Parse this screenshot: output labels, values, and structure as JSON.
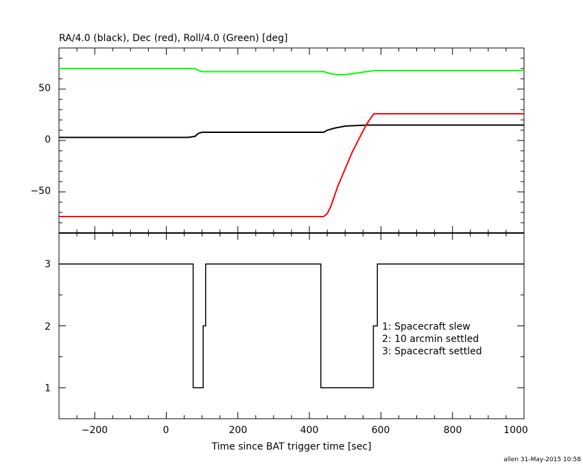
{
  "chart_data": [
    {
      "type": "line",
      "title": "RA/4.0 (black), Dec (red), Roll/4.0 (Green) [deg]",
      "xlim": [
        -300,
        1000
      ],
      "ylim": [
        -90,
        90
      ],
      "y_ticks": [
        50,
        0,
        -50
      ],
      "y_tick_labels": [
        "50",
        "0",
        "−50"
      ],
      "series": [
        {
          "color": "#000000",
          "x": [
            -300,
            60,
            80,
            90,
            100,
            200,
            340,
            440,
            450,
            470,
            500,
            560,
            580,
            1000
          ],
          "y": [
            3,
            3,
            4,
            7,
            8,
            8,
            8,
            8,
            10,
            12,
            14,
            15,
            15,
            15
          ]
        },
        {
          "color": "#ff0000",
          "x": [
            -300,
            340,
            440,
            450,
            460,
            480,
            520,
            560,
            580,
            1000
          ],
          "y": [
            -74,
            -74,
            -74,
            -71,
            -64,
            -44,
            -11,
            16,
            26,
            26
          ]
        },
        {
          "color": "#00ff00",
          "x": [
            -300,
            80,
            90,
            100,
            200,
            340,
            440,
            460,
            480,
            500,
            520,
            560,
            580,
            1000
          ],
          "y": [
            70,
            70,
            68,
            67,
            67,
            67,
            67,
            65,
            64,
            64,
            65,
            67,
            68,
            68
          ]
        }
      ]
    },
    {
      "type": "line",
      "xlabel": "Time since BAT trigger time [sec]",
      "xlim": [
        -300,
        1000
      ],
      "ylim": [
        0.5,
        3.5
      ],
      "x_ticks": [
        -200,
        0,
        200,
        400,
        600,
        800,
        1000
      ],
      "x_tick_labels": [
        "−200",
        "0",
        "200",
        "400",
        "600",
        "800",
        "1000"
      ],
      "y_ticks": [
        3,
        2,
        1
      ],
      "y_tick_labels": [
        "3",
        "2",
        "1"
      ],
      "annotations": [
        "1: Spacecraft slew",
        "2: 10 arcmin settled",
        "3: Spacecraft settled"
      ],
      "series": [
        {
          "color": "#000000",
          "x": [
            -300,
            75,
            75,
            103,
            103,
            110,
            110,
            432,
            432,
            579,
            579,
            590,
            590,
            1000
          ],
          "y": [
            3,
            3,
            1,
            1,
            2,
            2,
            3,
            3,
            1,
            1,
            2,
            2,
            3,
            3
          ]
        }
      ]
    }
  ],
  "footer": "allen 31-May-2015 10:58"
}
